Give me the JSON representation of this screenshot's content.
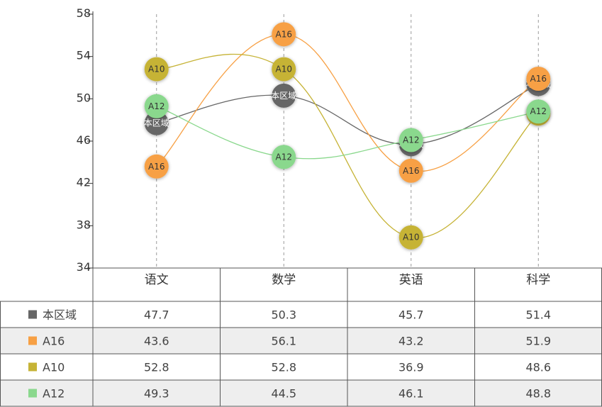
{
  "chart_data": {
    "type": "line",
    "categories": [
      "语文",
      "数学",
      "英语",
      "科学"
    ],
    "yticks": [
      34,
      38,
      42,
      46,
      50,
      54,
      58
    ],
    "ylim": [
      34,
      58
    ],
    "smooth": true,
    "series": [
      {
        "name": "本区域",
        "color": "#666666",
        "values": [
          47.7,
          50.3,
          45.7,
          51.4
        ],
        "labels": [
          "47.7",
          "50.3",
          "45.7",
          "51.4"
        ]
      },
      {
        "name": "A16",
        "color": "#F7A044",
        "values": [
          43.6,
          56.1,
          43.2,
          51.9
        ],
        "labels": [
          "43.6",
          "56.1",
          "43.2",
          "51.9"
        ]
      },
      {
        "name": "A10",
        "color": "#C6B336",
        "values": [
          52.8,
          52.8,
          36.9,
          48.6
        ],
        "labels": [
          "52.8",
          "52.8",
          "36.9",
          "48.6"
        ]
      },
      {
        "name": "A12",
        "color": "#8AD88D",
        "values": [
          49.3,
          44.5,
          46.1,
          48.8
        ],
        "labels": [
          "49.3",
          "44.5",
          "46.1",
          "48.8"
        ]
      }
    ]
  }
}
